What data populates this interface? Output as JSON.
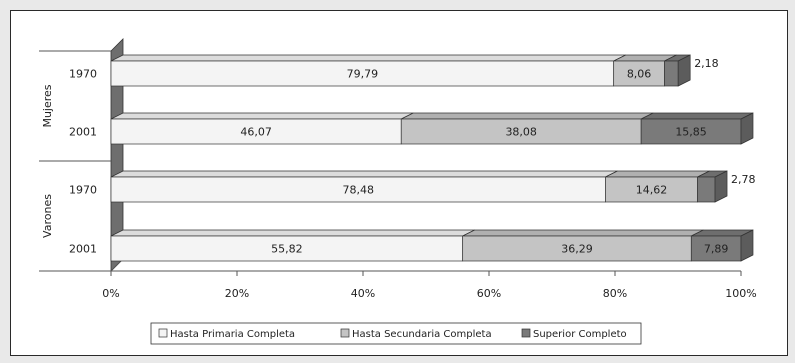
{
  "chart_data": {
    "type": "bar",
    "orientation": "horizontal",
    "stacked": true,
    "style": "3d",
    "groups": [
      {
        "label": "Mujeres",
        "categories": [
          "1970",
          "2001"
        ]
      },
      {
        "label": "Varones",
        "categories": [
          "1970",
          "2001"
        ]
      }
    ],
    "categories": [
      "1970",
      "2001",
      "1970",
      "2001"
    ],
    "series": [
      {
        "name": "Hasta Primaria Completa",
        "color": "#f4f4f4",
        "values": [
          79.79,
          46.07,
          78.48,
          55.82
        ]
      },
      {
        "name": "Hasta Secundaria Completa",
        "color": "#c4c4c4",
        "values": [
          8.06,
          38.08,
          14.62,
          36.29
        ]
      },
      {
        "name": "Superior Completo",
        "color": "#7a7a7a",
        "values": [
          2.18,
          15.85,
          2.78,
          7.89
        ]
      }
    ],
    "value_labels": [
      [
        "79,79",
        "8,06",
        "2,18"
      ],
      [
        "46,07",
        "38,08",
        "15,85"
      ],
      [
        "78,48",
        "14,62",
        "2,78"
      ],
      [
        "55,82",
        "36,29",
        "7,89"
      ]
    ],
    "xlim": [
      0,
      100
    ],
    "x_ticks": [
      0,
      20,
      40,
      60,
      80,
      100
    ],
    "x_tick_labels": [
      "0%",
      "20%",
      "40%",
      "60%",
      "80%",
      "100%"
    ],
    "grid": false,
    "legend": {
      "position": "bottom",
      "labels": [
        "Hasta Primaria Completa",
        "Hasta Secundaria Completa",
        "Superior Completo"
      ]
    }
  }
}
